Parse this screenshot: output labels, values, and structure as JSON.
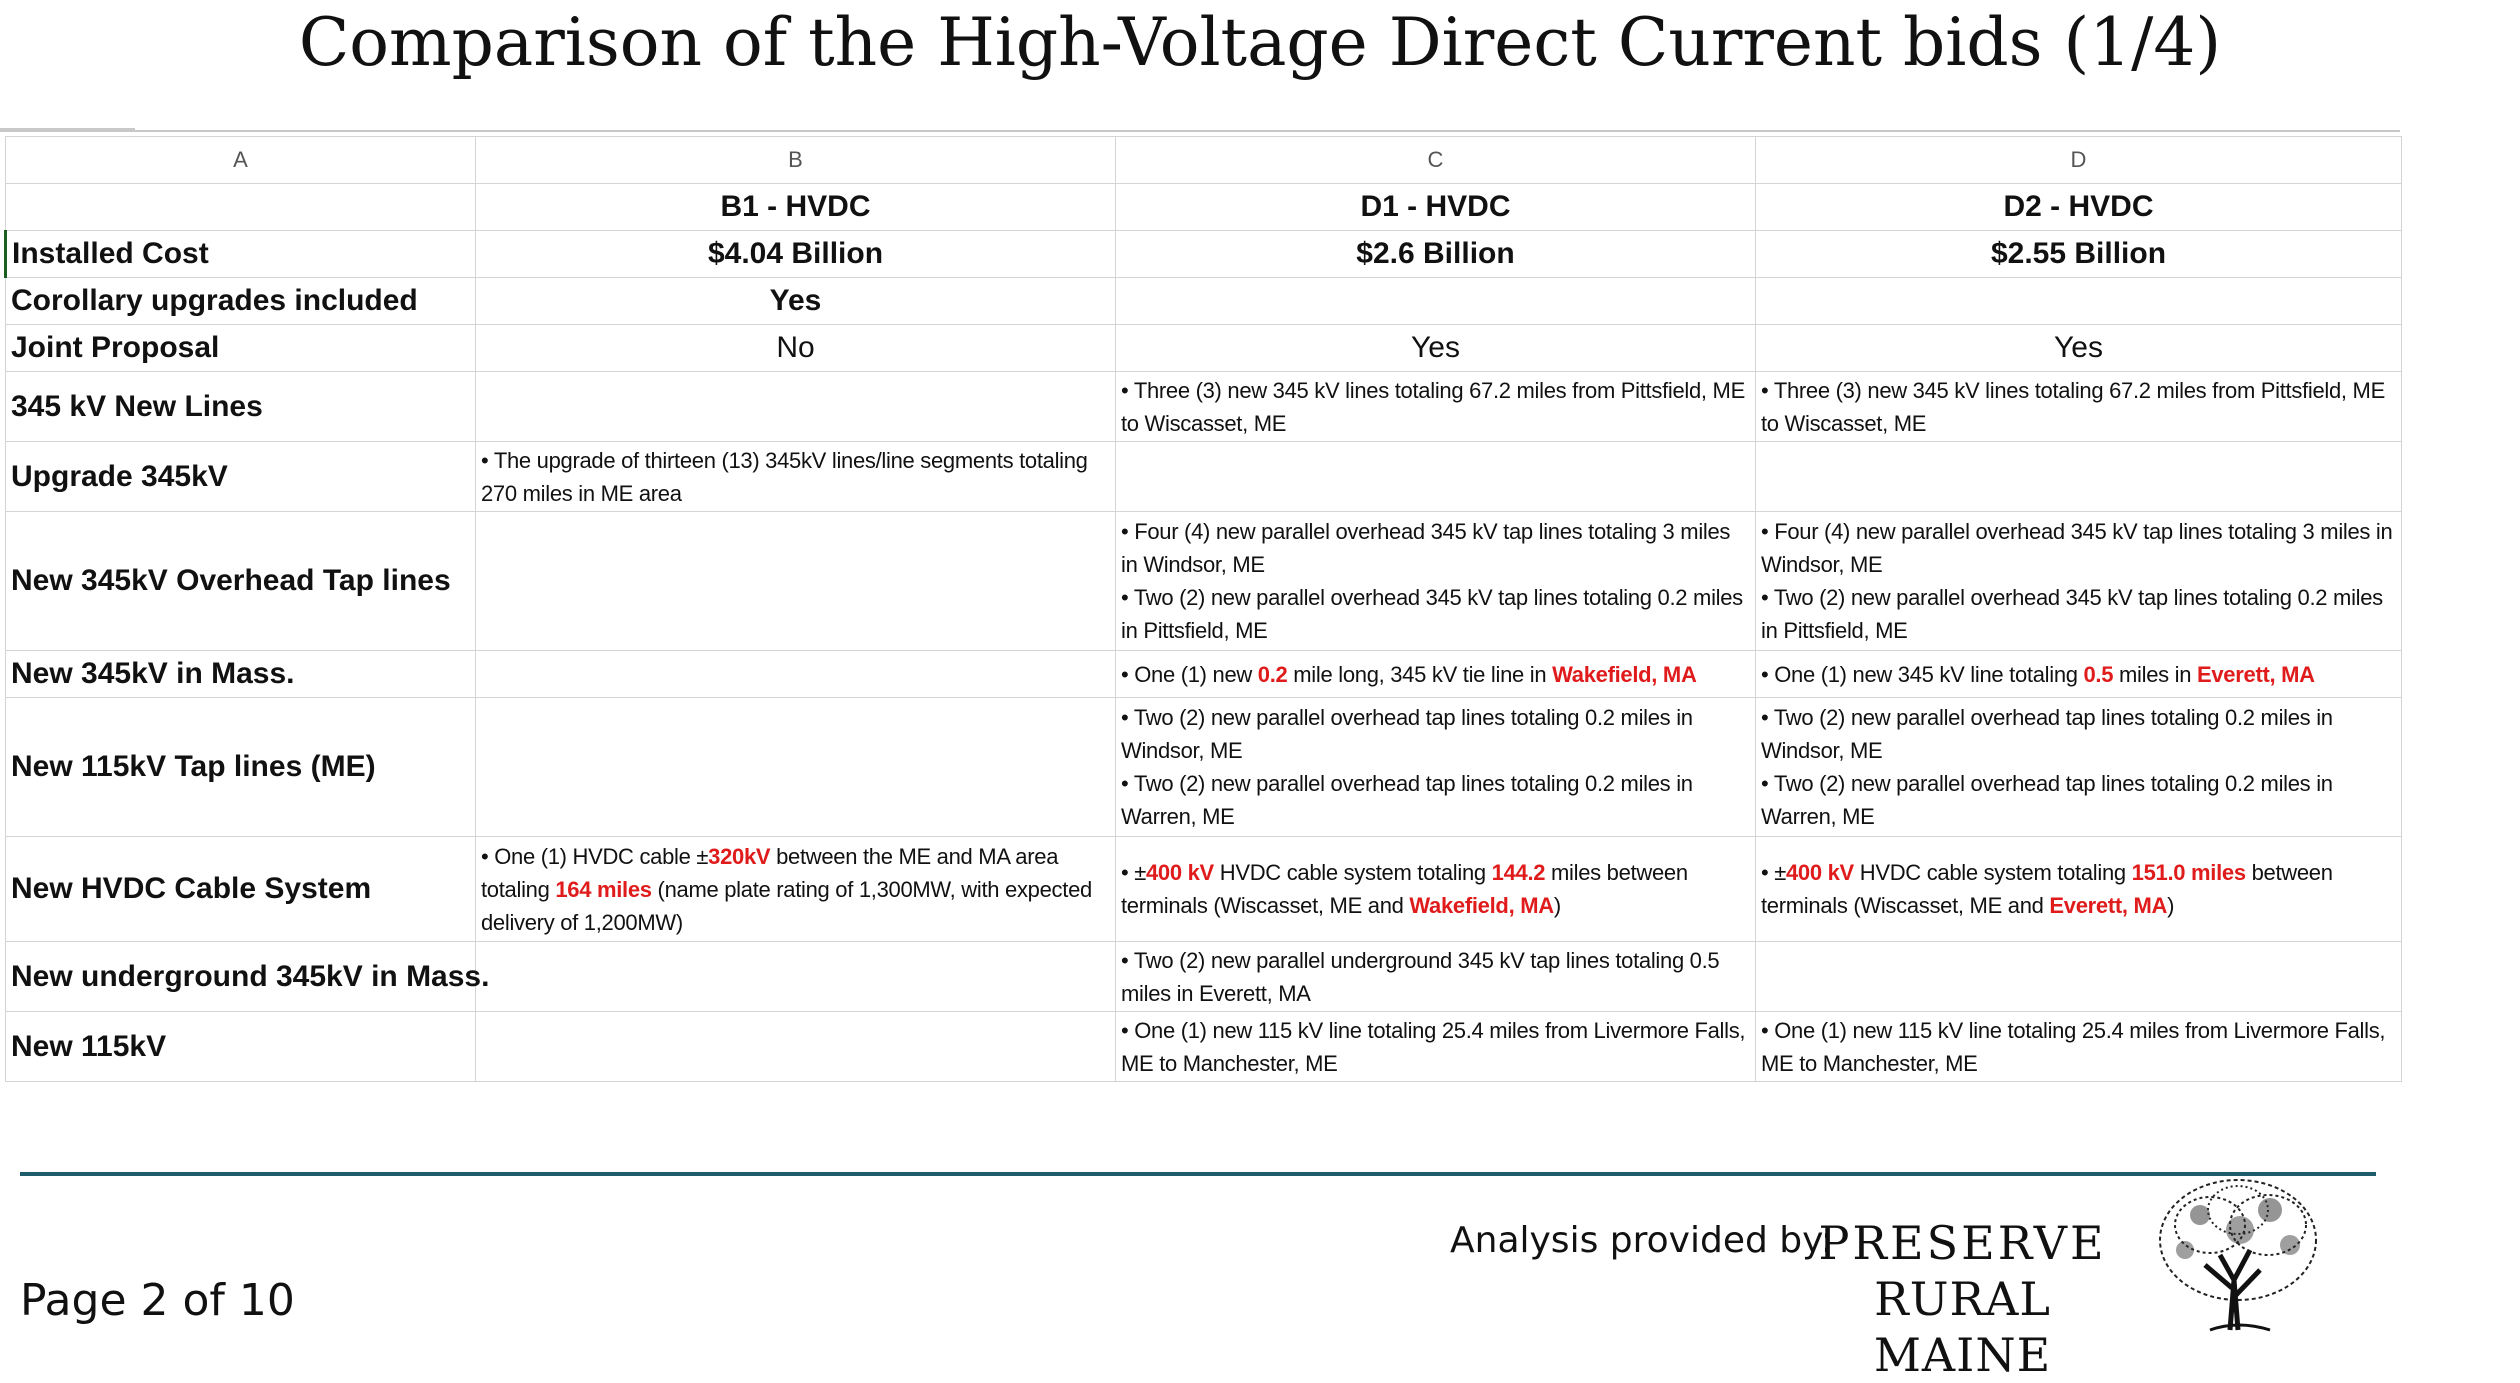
{
  "title": "Comparison of the High-Voltage Direct Current bids (1/4)",
  "columns": [
    "A",
    "B",
    "C",
    "D"
  ],
  "bids": [
    "B1 - HVDC",
    "D1 - HVDC",
    "D2 - HVDC"
  ],
  "rows": {
    "installed_cost": {
      "label": "Installed Cost",
      "b": "$4.04 Billion",
      "c": "$2.6 Billion",
      "d": "$2.55 Billion"
    },
    "corollary": {
      "label": "Corollary upgrades included",
      "b": "Yes",
      "c": "",
      "d": ""
    },
    "joint": {
      "label": "Joint Proposal",
      "b": "No",
      "c": "Yes",
      "d": "Yes"
    },
    "new_lines": {
      "label": "345 kV New Lines",
      "c": "• Three (3) new 345 kV lines totaling 67.2 miles from Pittsfield, ME to Wiscasset, ME",
      "d": "• Three (3) new 345 kV lines totaling 67.2 miles from Pittsfield, ME to Wiscasset, ME"
    },
    "upgrade": {
      "label": "Upgrade 345kV",
      "b": "• The upgrade of thirteen (13) 345kV lines/line segments totaling 270 miles in ME area"
    },
    "overhead_tap": {
      "label": "New 345kV Overhead Tap lines",
      "c1": "• Four (4) new parallel overhead 345 kV tap lines totaling 3 miles in Windsor, ME",
      "c2": "• Two (2) new parallel overhead 345 kV tap lines totaling 0.2 miles in Pittsfield, ME",
      "d1": "• Four (4) new parallel overhead 345 kV tap lines totaling 3 miles in Windsor, ME",
      "d2": "• Two (2) new parallel overhead 345 kV tap lines totaling 0.2 miles in Pittsfield, ME"
    },
    "mass": {
      "label": "New 345kV in Mass.",
      "c_a": "• One (1) new ",
      "c_b": "0.2",
      "c_c": " mile long, 345 kV tie line in ",
      "c_d": "Wakefield, MA",
      "d_a": "• One (1) new 345 kV line totaling ",
      "d_b": "0.5",
      "d_c": " miles in ",
      "d_d": "Everett, MA"
    },
    "tap115": {
      "label": "New 115kV Tap lines (ME)",
      "c1": "• Two (2) new parallel overhead tap lines totaling 0.2 miles in Windsor, ME",
      "c2": "• Two (2) new parallel overhead tap lines totaling 0.2 miles in Warren, ME",
      "d1": "• Two (2) new parallel overhead tap lines totaling 0.2 miles in Windsor, ME",
      "d2": "• Two (2) new parallel overhead tap lines totaling 0.2 miles in Warren, ME"
    },
    "hvdc": {
      "label": "New HVDC Cable System",
      "b_a": "• One (1) HVDC cable ±",
      "b_b": "320kV",
      "b_c": " between the ME and MA area totaling ",
      "b_d": "164 miles",
      "b_e": " (name plate rating of 1,300MW, with expected delivery of 1,200MW)",
      "c_a": "• ±",
      "c_b": "400 kV",
      "c_c": " HVDC cable system totaling ",
      "c_d": "144.2",
      "c_e": " miles between terminals (Wiscasset, ME and ",
      "c_f": "Wakefield, MA",
      "c_g": ")",
      "d_a": "• ±",
      "d_b": "400 kV",
      "d_c": " HVDC cable system totaling ",
      "d_d": "151.0 miles",
      "d_e": " between terminals (Wiscasset, ME and ",
      "d_f": "Everett, MA",
      "d_g": ")"
    },
    "underground": {
      "label": "New underground 345kV in Mass.",
      "c": "• Two (2) new parallel underground 345 kV tap lines totaling 0.5 miles in Everett, MA"
    },
    "new115": {
      "label": "New 115kV",
      "c": "• One (1) new 115 kV line totaling 25.4 miles from Livermore Falls, ME to Manchester, ME",
      "d": "• One (1) new 115 kV line totaling 25.4 miles from Livermore Falls, ME to Manchester, ME"
    }
  },
  "footer": {
    "page": "Page 2 of 10",
    "analysis": "Analysis provided by:",
    "logo_line1": "PRESERVE",
    "logo_line2": "RURAL MAINE"
  },
  "colors": {
    "highlight": "#e01b1b",
    "footer_rule": "#1f5c6b",
    "first_col_accent": "#1b5e20"
  }
}
